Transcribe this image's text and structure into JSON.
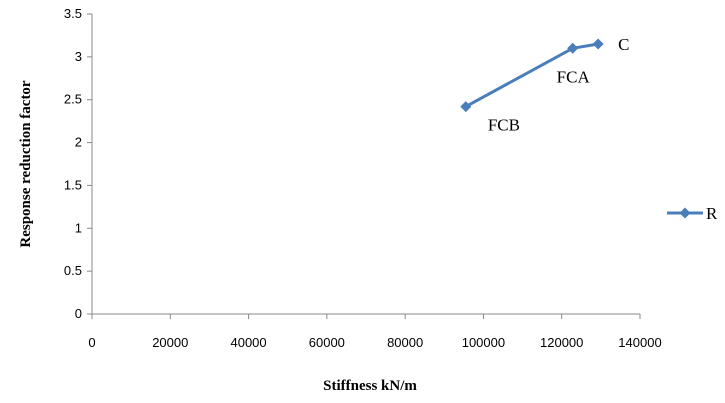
{
  "chart_data": {
    "type": "scatter",
    "title": "",
    "xlabel": "Stiffness kN/m",
    "ylabel": "Response reduction factor",
    "xlim": [
      0,
      140000
    ],
    "ylim": [
      0,
      3.5
    ],
    "xticks": [
      "0",
      "20000",
      "40000",
      "60000",
      "80000",
      "100000",
      "120000",
      "140000"
    ],
    "yticks": [
      "0",
      "0.5",
      "1",
      "1.5",
      "2",
      "2.5",
      "3",
      "3.5"
    ],
    "grid": false,
    "legend_position": "right",
    "series": [
      {
        "name": "R",
        "color": "#4a7ebb",
        "marker": "diamond",
        "points": [
          {
            "x": 95500,
            "y": 2.42,
            "label": "FCB"
          },
          {
            "x": 122800,
            "y": 3.1,
            "label": "FCA"
          },
          {
            "x": 129300,
            "y": 3.15,
            "label": "C"
          }
        ]
      }
    ]
  }
}
